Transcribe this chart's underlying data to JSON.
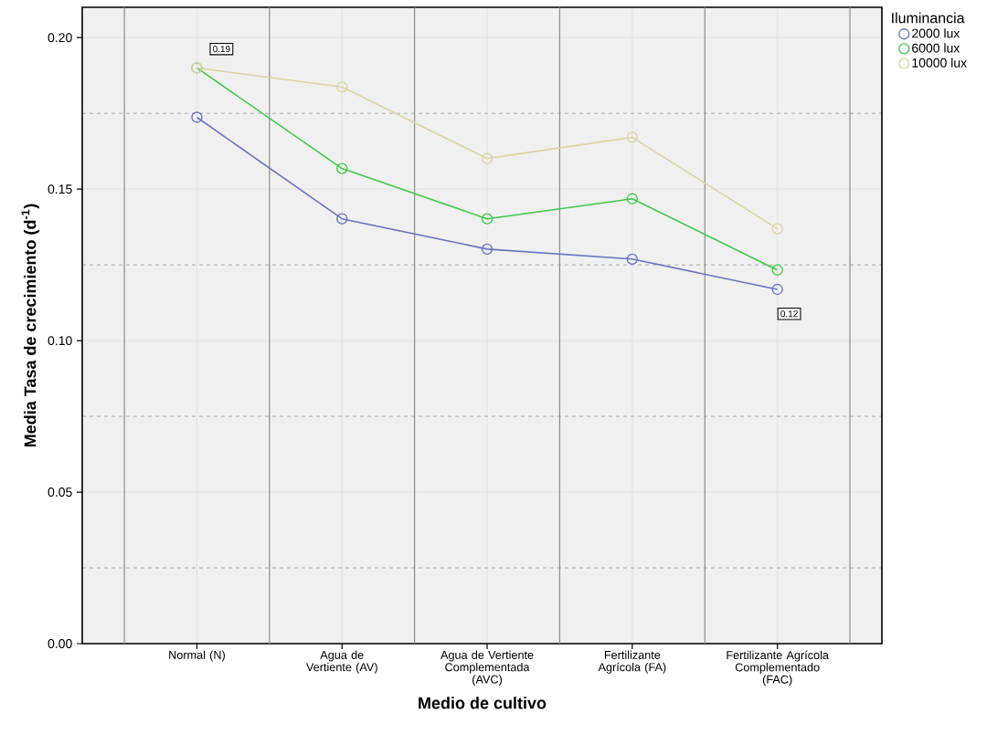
{
  "chart_data": {
    "type": "line",
    "xlabel": "Medio de cultivo",
    "ylabel": "Media Tasa de crecimiento (d$^{-1}$)",
    "legend_title": "Iluminancia",
    "categories": [
      "Normal (N)",
      "Agua de Vertiente (AV)",
      "Agua de Vertiente Complementada (AVC)",
      "Fertilizante Agrícola (FA)",
      "Fertilizante Agrícola Complementado (FAC)"
    ],
    "series": [
      {
        "name": "2000 lux",
        "color": "#6673c0",
        "values": [
          0.1737,
          0.1402,
          0.1302,
          0.1269,
          0.1169
        ]
      },
      {
        "name": "6000 lux",
        "color": "#3ec84a",
        "values": [
          0.19,
          0.1568,
          0.1402,
          0.1468,
          0.1233
        ]
      },
      {
        "name": "10000 lux",
        "color": "#dcd4a0",
        "values": [
          0.19,
          0.1837,
          0.1601,
          0.1671,
          0.1369
        ]
      }
    ],
    "ylim": [
      0,
      0.21
    ],
    "yticks": [
      {
        "value": 0,
        "label": "0.00"
      },
      {
        "value": 0.05,
        "label": "0.05"
      },
      {
        "value": 0.1,
        "label": "0.10"
      },
      {
        "value": 0.15,
        "label": "0.15"
      },
      {
        "value": 0.2,
        "label": "0.20"
      }
    ],
    "annotations": [
      {
        "text": "0.19",
        "x": "Normal (N)",
        "y": 0.19
      },
      {
        "text": "0.12",
        "x": "Fertilizante Agrícola Complementado (FAC)",
        "y": 0.1169
      }
    ],
    "grid": true,
    "legend": "top right",
    "marker": "circle",
    "line_style": "solid"
  }
}
